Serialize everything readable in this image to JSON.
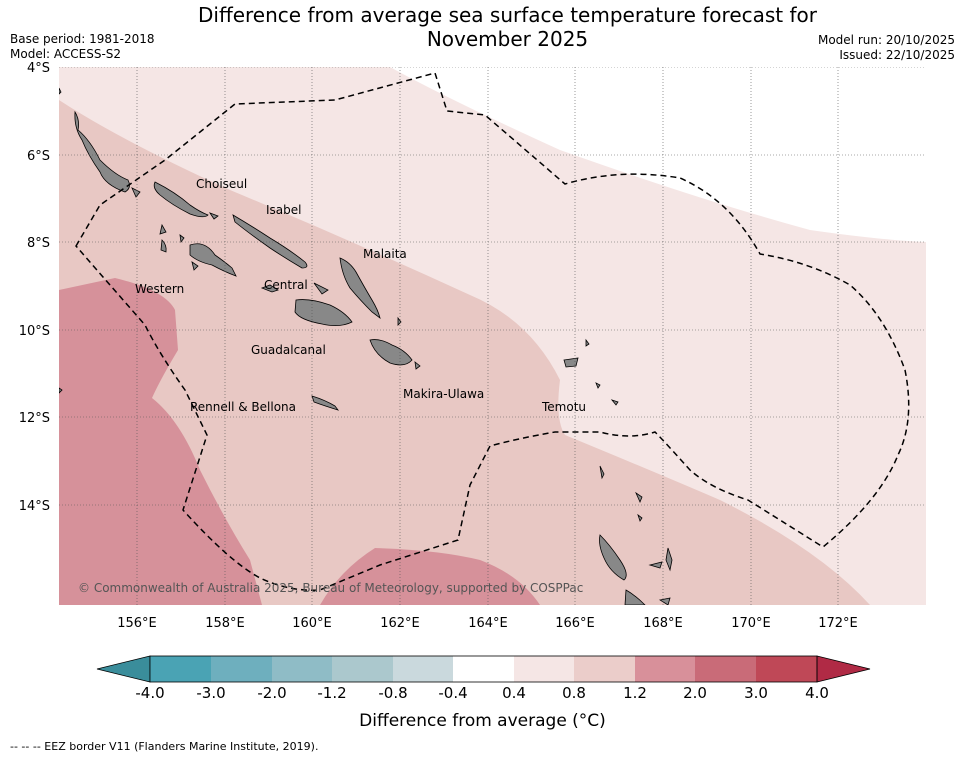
{
  "title_line1": "Difference from average sea surface temperature forecast for",
  "title_line2": "November 2025",
  "base_period": "Base period: 1981-2018",
  "model": "Model: ACCESS-S2",
  "model_run": "Model run: 20/10/2025",
  "issued": "Issued: 22/10/2025",
  "lat_labels": [
    "4°S",
    "6°S",
    "8°S",
    "10°S",
    "12°S",
    "14°S"
  ],
  "lon_labels": [
    "156°E",
    "158°E",
    "160°E",
    "162°E",
    "164°E",
    "166°E",
    "168°E",
    "170°E",
    "172°E"
  ],
  "places": {
    "choiseul": "Choiseul",
    "isabel": "Isabel",
    "malaita": "Malaita",
    "western": "Western",
    "central": "Central",
    "guadalcanal": "Guadalcanal",
    "rennell": "Rennell & Bellona",
    "makira": "Makira-Ulawa",
    "temotu": "Temotu"
  },
  "copyright": "© Commonwealth of Australia 2025, Bureau of Meteorology, supported by COSPPac",
  "colorbar": {
    "ticks": [
      "-4.0",
      "-3.0",
      "-2.0",
      "-1.2",
      "-0.8",
      "-0.4",
      "0.4",
      "0.8",
      "1.2",
      "2.0",
      "3.0",
      "4.0"
    ],
    "colors": [
      "#3a8d9b",
      "#4aa3b4",
      "#6eafbe",
      "#8fbcc6",
      "#abc8cd",
      "#cad9dd",
      "#ffffff",
      "#f5e6e5",
      "#ebcdca",
      "#e7c5c0",
      "#d8909a",
      "#c96b78",
      "#bf4857",
      "#b02a45"
    ],
    "label": "Difference from average (°C)"
  },
  "footnote": "--  --  -- EEZ border V11 (Flanders Marine Institute, 2019)."
}
